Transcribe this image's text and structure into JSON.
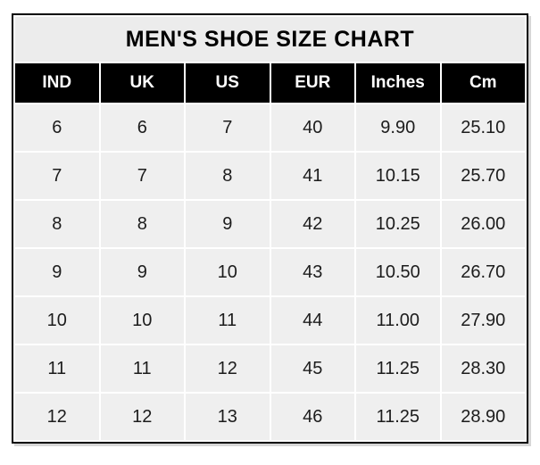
{
  "chart_data": {
    "type": "table",
    "title": "MEN'S SHOE SIZE CHART",
    "columns": [
      "IND",
      "UK",
      "US",
      "EUR",
      "Inches",
      "Cm"
    ],
    "rows": [
      [
        "6",
        "6",
        "7",
        "40",
        "9.90",
        "25.10"
      ],
      [
        "7",
        "7",
        "8",
        "41",
        "10.15",
        "25.70"
      ],
      [
        "8",
        "8",
        "9",
        "42",
        "10.25",
        "26.00"
      ],
      [
        "9",
        "9",
        "10",
        "43",
        "10.50",
        "26.70"
      ],
      [
        "10",
        "10",
        "11",
        "44",
        "11.00",
        "27.90"
      ],
      [
        "11",
        "11",
        "12",
        "45",
        "11.25",
        "28.30"
      ],
      [
        "12",
        "12",
        "13",
        "46",
        "11.25",
        "28.90"
      ]
    ],
    "layout": {
      "legend": "none",
      "grid": "white gridlines between gray cells",
      "title_position": "top strip inside black border"
    }
  },
  "colors": {
    "border": "#000000",
    "title_bg": "#ececec",
    "header_bg": "#000000",
    "header_text": "#ffffff",
    "cell_bg": "#efefef",
    "body_text": "#1c1c1c",
    "page_bg": "#ffffff"
  }
}
